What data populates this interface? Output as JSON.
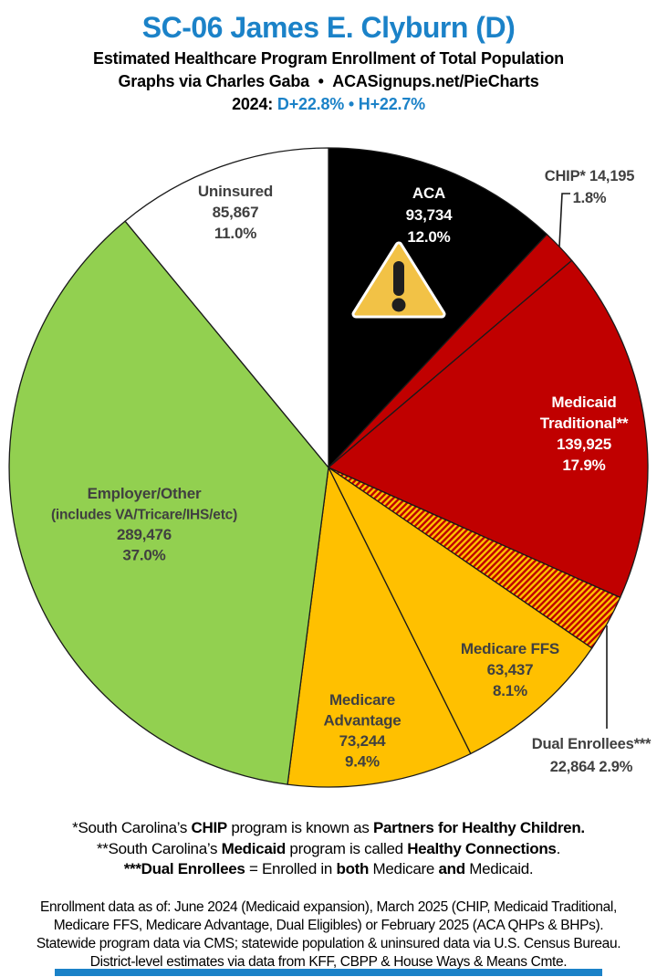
{
  "header": {
    "title": "SC-06 James E. Clyburn (D)",
    "subtitle1": "Estimated Healthcare Program Enrollment of Total Population",
    "subtitle2": "Graphs via Charles Gaba  •  ACASignups.net/PieCharts",
    "lean_segments": [
      {
        "text": "2024: ",
        "color": "#000000"
      },
      {
        "text": "D+22.8%",
        "color": "#1B82C8"
      },
      {
        "text": " • ",
        "color": "#1B82C8"
      },
      {
        "text": "H+22.7%",
        "color": "#1B82C8"
      }
    ]
  },
  "chart_data": {
    "type": "pie",
    "title": "Estimated Healthcare Program Enrollment of Total Population",
    "district": "SC-06",
    "representative": "James E. Clyburn (D)",
    "start_angle_deg": 0,
    "direction": "clockwise",
    "legend_position": "labels-on-slices",
    "slices": [
      {
        "id": "aca",
        "label": "ACA",
        "value": 93734,
        "pct": 12.0,
        "color": "#000000",
        "text_color": "#FFFFFF",
        "lines": [
          "ACA",
          "93,734",
          "12.0%"
        ],
        "has_warning_icon": true
      },
      {
        "id": "chip",
        "label": "CHIP*",
        "value": 14195,
        "pct": 1.8,
        "color": "#C00000",
        "callout": true,
        "lines": [
          "CHIP* 14,195",
          "1.8%"
        ]
      },
      {
        "id": "medicaid",
        "label": "Medicaid Traditional**",
        "value": 139925,
        "pct": 17.9,
        "color": "#C00000",
        "text_color": "#FFFFFF",
        "lines": [
          "Medicaid",
          "Traditional**",
          "139,925",
          "17.9%"
        ]
      },
      {
        "id": "dual",
        "label": "Dual Enrollees***",
        "value": 22864,
        "pct": 2.9,
        "color": "hatch-red-gold",
        "callout": true,
        "lines": [
          "Dual Enrollees***",
          "22,864 2.9%"
        ]
      },
      {
        "id": "ffs",
        "label": "Medicare FFS",
        "value": 63437,
        "pct": 8.1,
        "color": "#FFC000",
        "lines": [
          "Medicare FFS",
          "63,437",
          "8.1%"
        ]
      },
      {
        "id": "advantage",
        "label": "Medicare Advantage",
        "value": 73244,
        "pct": 9.4,
        "color": "#FFC000",
        "lines": [
          "Medicare",
          "Advantage",
          "73,244",
          "9.4%"
        ]
      },
      {
        "id": "employer",
        "label": "Employer/Other (includes VA/Tricare/IHS/etc)",
        "value": 289476,
        "pct": 37.0,
        "color": "#92D050",
        "lines": [
          "Employer/Other",
          "(includes VA/Tricare/IHS/etc)",
          "289,476",
          "37.0%"
        ]
      },
      {
        "id": "uninsured",
        "label": "Uninsured",
        "value": 85867,
        "pct": 11.0,
        "color": "#FFFFFF",
        "lines": [
          "Uninsured",
          "85,867",
          "11.0%"
        ]
      }
    ],
    "hatch_colors": [
      "#FFC000",
      "#C00000"
    ],
    "warning_icon": "warning-triangle"
  },
  "footnotes": [
    [
      {
        "t": "*South Carolina’s ",
        "b": false
      },
      {
        "t": "CHIP",
        "b": true
      },
      {
        "t": " program is known as ",
        "b": false
      },
      {
        "t": "Partners for Healthy Children.",
        "b": true
      }
    ],
    [
      {
        "t": "**South Carolina’s ",
        "b": false
      },
      {
        "t": "Medicaid",
        "b": true
      },
      {
        "t": " program is called ",
        "b": false
      },
      {
        "t": "Healthy Connections",
        "b": true
      },
      {
        "t": ".",
        "b": false
      }
    ],
    [
      {
        "t": "***Dual Enrollees",
        "b": true
      },
      {
        "t": " = Enrolled in ",
        "b": false
      },
      {
        "t": "both",
        "b": true
      },
      {
        "t": " Medicare ",
        "b": false
      },
      {
        "t": "and",
        "b": true
      },
      {
        "t": " Medicaid.",
        "b": false
      }
    ]
  ],
  "sources": [
    "Enrollment data as of: June 2024 (Medicaid expansion), March 2025 (CHIP, Medicaid Traditional,",
    "Medicare FFS, Medicare Advantage, Dual Eligibles) or February 2025 (ACA QHPs & BHPs).",
    "Statewide program data via CMS; statewide population & uninsured data via U.S. Census Bureau.",
    "District-level estimates via data from KFF, CBPP & House Ways & Means Cmte."
  ],
  "colors": {
    "accent_blue": "#1B82C8",
    "red": "#C00000",
    "gold": "#FFC000",
    "green": "#92D050",
    "black": "#000000",
    "label_gray": "#404040",
    "party_bar": "#1B82C8"
  }
}
